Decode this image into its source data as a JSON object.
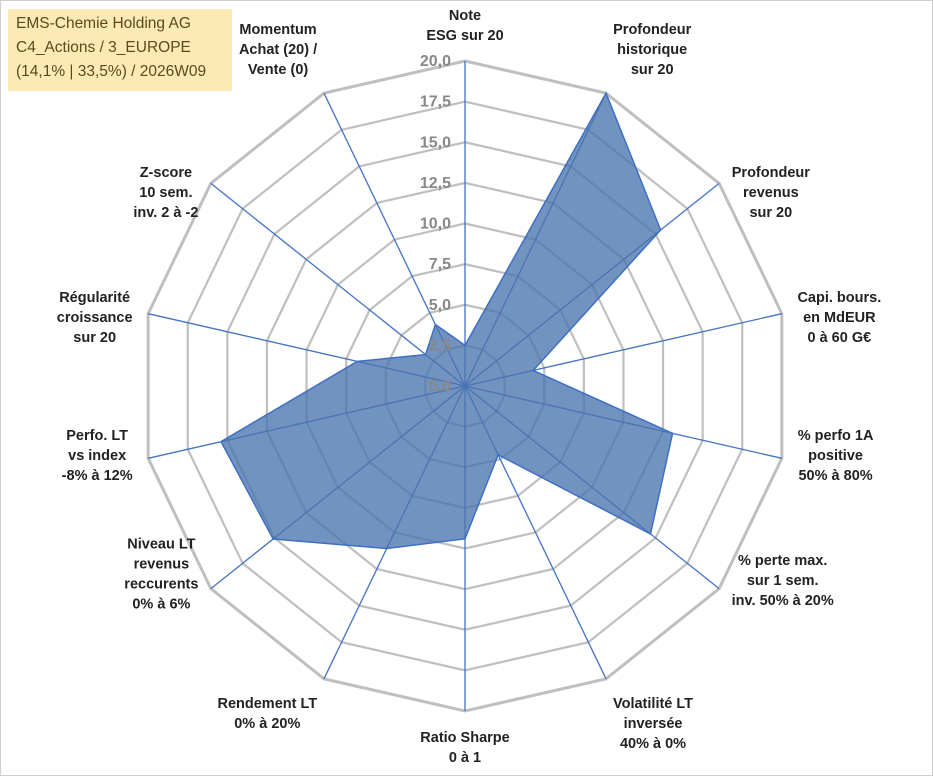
{
  "title_box": {
    "line1": "EMS-Chemie Holding AG",
    "line2": "C4_Actions / 3_EUROPE",
    "line3": "(14,1% | 33,5%) / 2026W09"
  },
  "colors": {
    "title_bg": "#fde9b4",
    "title_text": "#5a4a1e",
    "grid": "#bfbfbf",
    "spoke": "#4472c4",
    "fill": "#4a75ad",
    "fill_stroke": "#3d6fc4",
    "tick_text": "#888888",
    "label_text": "#222222"
  },
  "chart_data": {
    "type": "radar",
    "title": "EMS-Chemie Holding AG",
    "rmin": 0,
    "rmax": 20,
    "ticks": [
      "0,0",
      "2,5",
      "5,0",
      "7,5",
      "10,0",
      "12,5",
      "15,0",
      "17,5",
      "20,0"
    ],
    "categories": [
      [
        "Note",
        "ESG sur 20"
      ],
      [
        "Profondeur",
        "historique",
        "sur 20"
      ],
      [
        "Profondeur",
        "revenus",
        "sur 20"
      ],
      [
        "Capi. bours.",
        "en MdEUR",
        "0 à 60 G€"
      ],
      [
        "% perfo 1A",
        "positive",
        "50% à 80%"
      ],
      [
        "% perte max.",
        "sur 1 sem.",
        "inv. 50% à 20%"
      ],
      [
        "Volatilité LT",
        "inversée",
        "40% à 0%"
      ],
      [
        "Ratio Sharpe",
        "0 à 1"
      ],
      [
        "Rendement LT",
        "0% à 20%"
      ],
      [
        "Niveau LT",
        "revenus",
        "reccurents",
        "0% à 6%"
      ],
      [
        "Perfo. LT",
        "vs index",
        "-8% à 12%"
      ],
      [
        "Régularité",
        "croissance",
        "sur 20"
      ],
      [
        "Z-score",
        "10 sem.",
        "inv. 2 à -2"
      ],
      [
        "Momentum",
        "Achat (20) /",
        "Vente (0)"
      ]
    ],
    "series": [
      {
        "name": "EMS-Chemie Holding AG",
        "values": [
          2.5,
          20.0,
          15.4,
          4.3,
          13.1,
          14.6,
          4.7,
          9.4,
          11.1,
          15.1,
          15.4,
          6.8,
          3.1,
          4.2
        ]
      }
    ]
  }
}
